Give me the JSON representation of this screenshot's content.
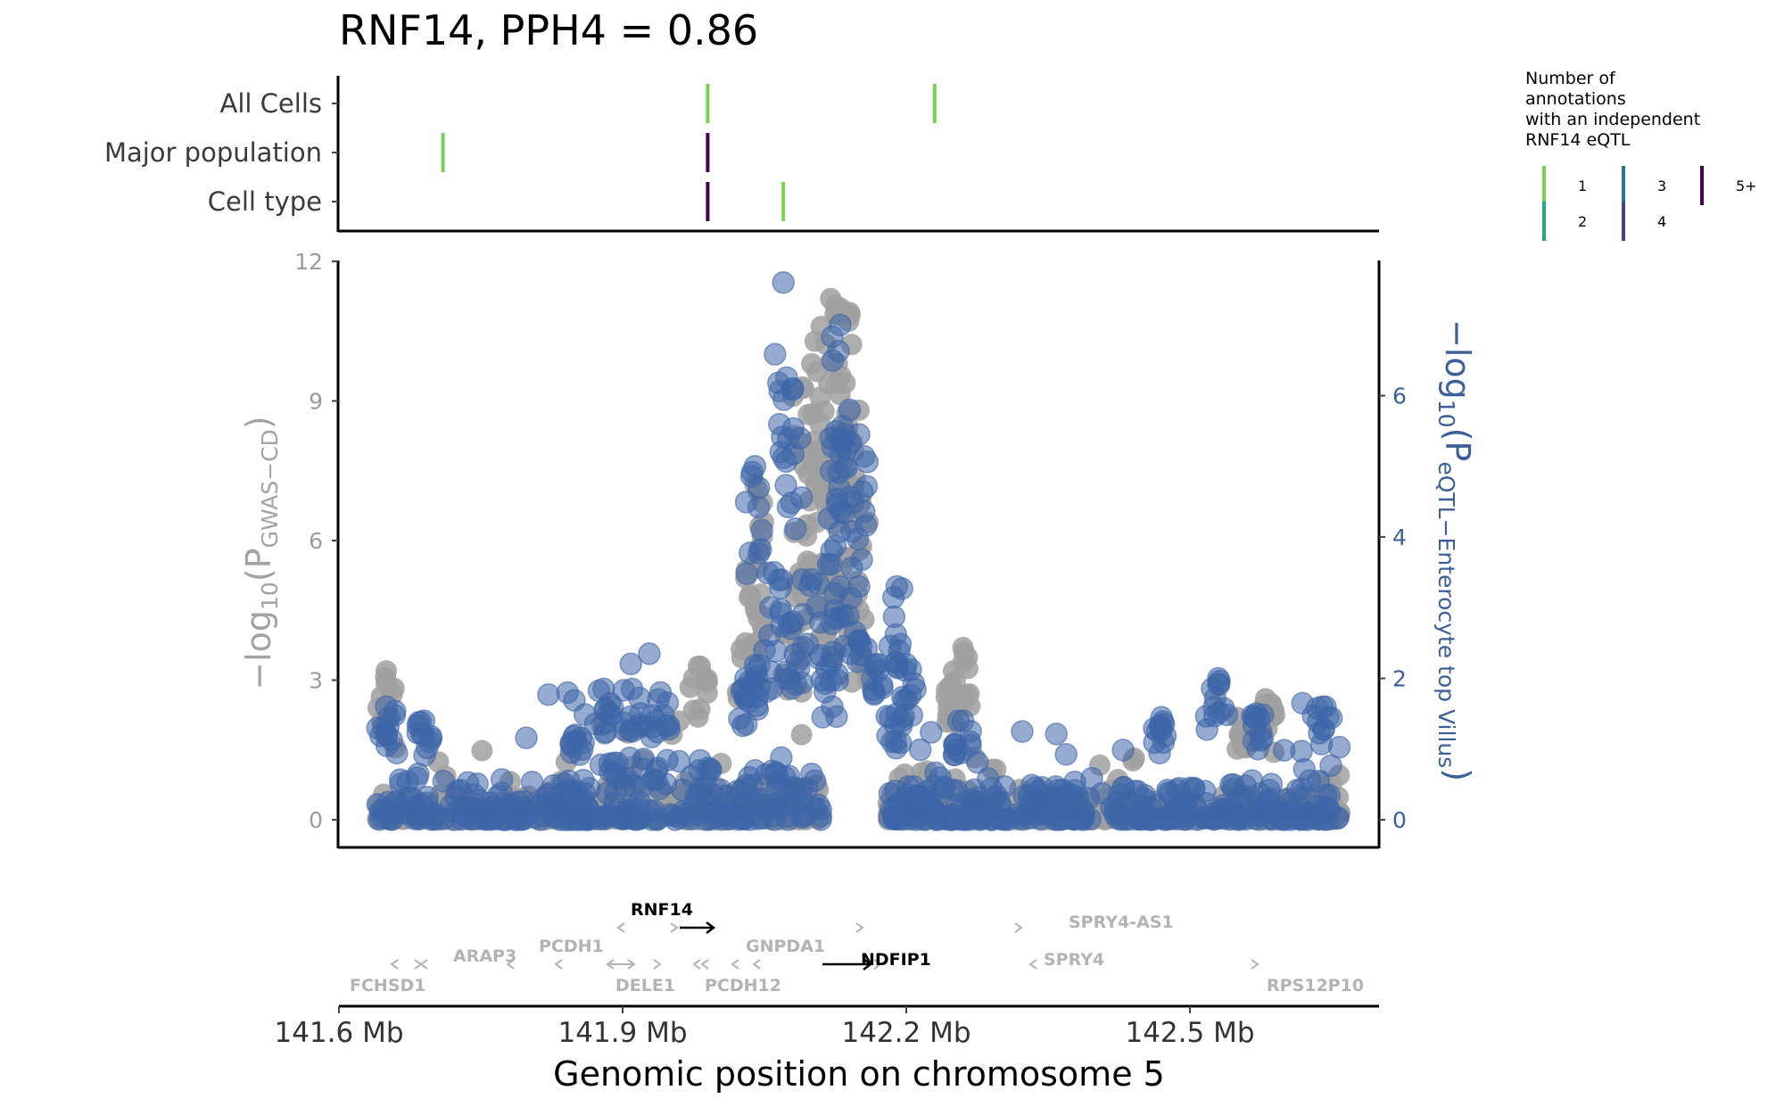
{
  "chart_data": {
    "type": "scatter",
    "title": "RNF14, PPH4 = 0.86",
    "xlabel": "Genomic position on chromosome 5",
    "x_ticks": [
      "141.6 Mb",
      "141.9 Mb",
      "142.2 Mb",
      "142.5 Mb"
    ],
    "x_tick_values": [
      141.6,
      141.9,
      142.2,
      142.5
    ],
    "xlim": [
      141.6,
      142.7
    ],
    "ylabel_left": {
      "prefix": "−log",
      "base": "10",
      "open": "(P",
      "sub": "GWAS−CD",
      "close": ")"
    },
    "ylabel_right": {
      "prefix": "−log",
      "base": "10",
      "open": "(P",
      "sub": "eQTL−Enterocyte top Villus",
      "close": ")"
    },
    "ylim_left": [
      0,
      12
    ],
    "y_ticks_left": [
      0,
      3,
      6,
      9,
      12
    ],
    "y_tick_labels_left": [
      "0",
      "3",
      "6",
      "9",
      "12"
    ],
    "ylim_right": [
      0,
      7.9
    ],
    "y_ticks_right": [
      0,
      2,
      4,
      6
    ],
    "y_tick_labels_right": [
      "0",
      "2",
      "4",
      "6"
    ],
    "grid": false,
    "colors": {
      "gwas": "#a0a0a0",
      "eqtl": "#3e66a8",
      "gene_highlight": "#000000",
      "gene_other": "#b3b3b3"
    },
    "series": [
      {
        "name": "GWAS-CD",
        "axis": "left",
        "hotspots": [
          {
            "x": 142.12,
            "y": 11.2
          },
          {
            "x": 142.13,
            "y": 11.0
          },
          {
            "x": 142.11,
            "y": 10.6
          },
          {
            "x": 142.14,
            "y": 10.9
          },
          {
            "x": 142.1,
            "y": 9.8
          },
          {
            "x": 142.15,
            "y": 8.8
          },
          {
            "x": 142.09,
            "y": 9.3
          },
          {
            "x": 142.12,
            "y": 7.3
          },
          {
            "x": 142.14,
            "y": 7.2
          },
          {
            "x": 142.04,
            "y": 7.2
          },
          {
            "x": 142.09,
            "y": 6.2
          },
          {
            "x": 142.11,
            "y": 5.5
          },
          {
            "x": 142.13,
            "y": 4.8
          },
          {
            "x": 142.15,
            "y": 4.5
          },
          {
            "x": 142.04,
            "y": 5.5
          },
          {
            "x": 142.03,
            "y": 3.8
          },
          {
            "x": 142.08,
            "y": 4.2
          },
          {
            "x": 142.26,
            "y": 3.7
          },
          {
            "x": 142.25,
            "y": 3.2
          },
          {
            "x": 141.65,
            "y": 3.2
          },
          {
            "x": 141.98,
            "y": 3.3
          },
          {
            "x": 142.55,
            "y": 2.2
          },
          {
            "x": 142.58,
            "y": 2.6
          }
        ]
      },
      {
        "name": "eQTL-Enterocyte top Villus",
        "axis": "right",
        "hotspots": [
          {
            "x": 142.07,
            "y": 7.6
          },
          {
            "x": 142.08,
            "y": 6.1
          },
          {
            "x": 142.13,
            "y": 7.0
          },
          {
            "x": 142.12,
            "y": 5.4
          },
          {
            "x": 142.135,
            "y": 5.45
          },
          {
            "x": 142.15,
            "y": 5.45
          },
          {
            "x": 142.04,
            "y": 5.0
          },
          {
            "x": 142.06,
            "y": 3.5
          },
          {
            "x": 142.1,
            "y": 3.4
          },
          {
            "x": 142.13,
            "y": 3.3
          },
          {
            "x": 142.15,
            "y": 3.3
          },
          {
            "x": 142.19,
            "y": 3.3
          },
          {
            "x": 142.05,
            "y": 2.4
          },
          {
            "x": 142.08,
            "y": 2.8
          },
          {
            "x": 142.12,
            "y": 2.2
          },
          {
            "x": 142.17,
            "y": 2.2
          },
          {
            "x": 142.2,
            "y": 2.2
          },
          {
            "x": 142.03,
            "y": 2.0
          },
          {
            "x": 141.88,
            "y": 1.85
          },
          {
            "x": 141.91,
            "y": 1.85
          },
          {
            "x": 141.94,
            "y": 1.8
          },
          {
            "x": 142.53,
            "y": 2.0
          },
          {
            "x": 142.57,
            "y": 1.5
          },
          {
            "x": 142.64,
            "y": 1.6
          },
          {
            "x": 142.47,
            "y": 1.45
          },
          {
            "x": 141.65,
            "y": 1.6
          },
          {
            "x": 141.69,
            "y": 1.4
          },
          {
            "x": 142.26,
            "y": 1.4
          },
          {
            "x": 142.19,
            "y": 1.5
          },
          {
            "x": 141.85,
            "y": 1.2
          }
        ]
      }
    ],
    "tracks": {
      "labels": [
        "All Cells",
        "Major population",
        "Cell type"
      ],
      "marks": [
        {
          "track": "All Cells",
          "x": 141.99,
          "count": "1"
        },
        {
          "track": "All Cells",
          "x": 142.23,
          "count": "1"
        },
        {
          "track": "Major population",
          "x": 141.71,
          "count": "1"
        },
        {
          "track": "Major population",
          "x": 141.99,
          "count": "5+"
        },
        {
          "track": "Cell type",
          "x": 141.99,
          "count": "5+"
        },
        {
          "track": "Cell type",
          "x": 142.07,
          "count": "1"
        }
      ]
    },
    "legend": {
      "title_lines": [
        "Number of",
        "annotations",
        "with an independent",
        "RNF14 eQTL"
      ],
      "placement": "top-right",
      "items": [
        {
          "label": "1",
          "color": "#7ad151"
        },
        {
          "label": "2",
          "color": "#22a884"
        },
        {
          "label": "3",
          "color": "#2a788e"
        },
        {
          "label": "4",
          "color": "#414487"
        },
        {
          "label": "5+",
          "color": "#440154"
        }
      ]
    },
    "genes": [
      {
        "name": "RNF14",
        "highlight": true
      },
      {
        "name": "NDFIP1",
        "highlight": true
      },
      {
        "name": "FCHSD1",
        "highlight": false
      },
      {
        "name": "ARAP3",
        "highlight": false
      },
      {
        "name": "PCDH1",
        "highlight": false
      },
      {
        "name": "DELE1",
        "highlight": false
      },
      {
        "name": "PCDH12",
        "highlight": false
      },
      {
        "name": "GNPDA1",
        "highlight": false
      },
      {
        "name": "SPRY4-AS1",
        "highlight": false
      },
      {
        "name": "SPRY4",
        "highlight": false
      },
      {
        "name": "RPS12P10",
        "highlight": false
      }
    ]
  }
}
